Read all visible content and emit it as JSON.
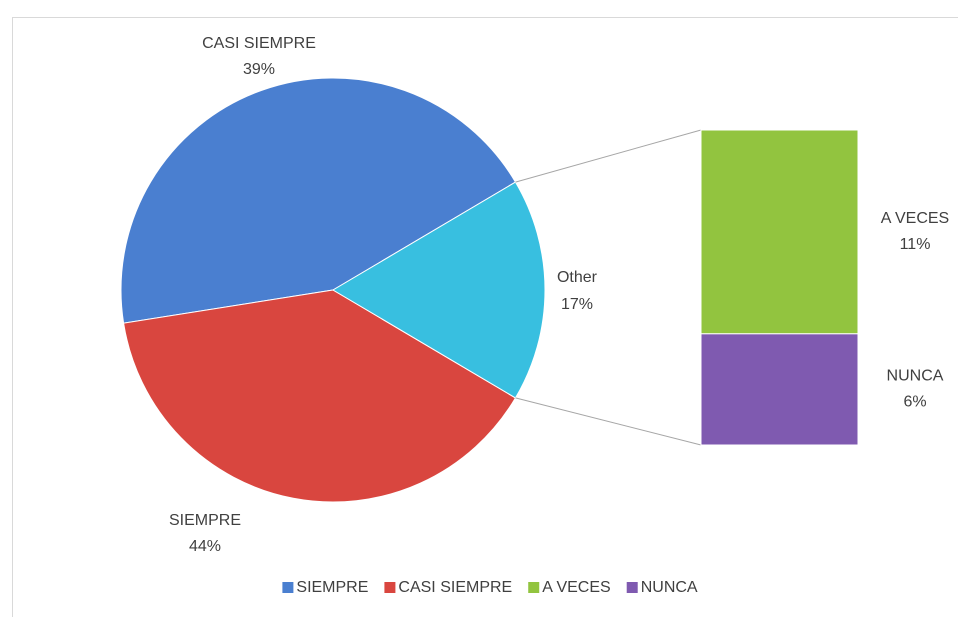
{
  "chart_data": {
    "type": "pie",
    "categories": [
      "SIEMPRE",
      "CASI SIEMPRE",
      "A VECES",
      "NUNCA"
    ],
    "values": [
      44,
      39,
      11,
      6
    ],
    "value_labels": [
      "44%",
      "39%",
      "11%",
      "6%"
    ],
    "colors": [
      "#4a7fd0",
      "#d9463f",
      "#92c43f",
      "#7f5ab0"
    ],
    "split_last": 2,
    "other": {
      "label": "Other",
      "value": 17,
      "value_label": "17%",
      "color": "#38bfe0"
    },
    "legend": "bottom"
  }
}
